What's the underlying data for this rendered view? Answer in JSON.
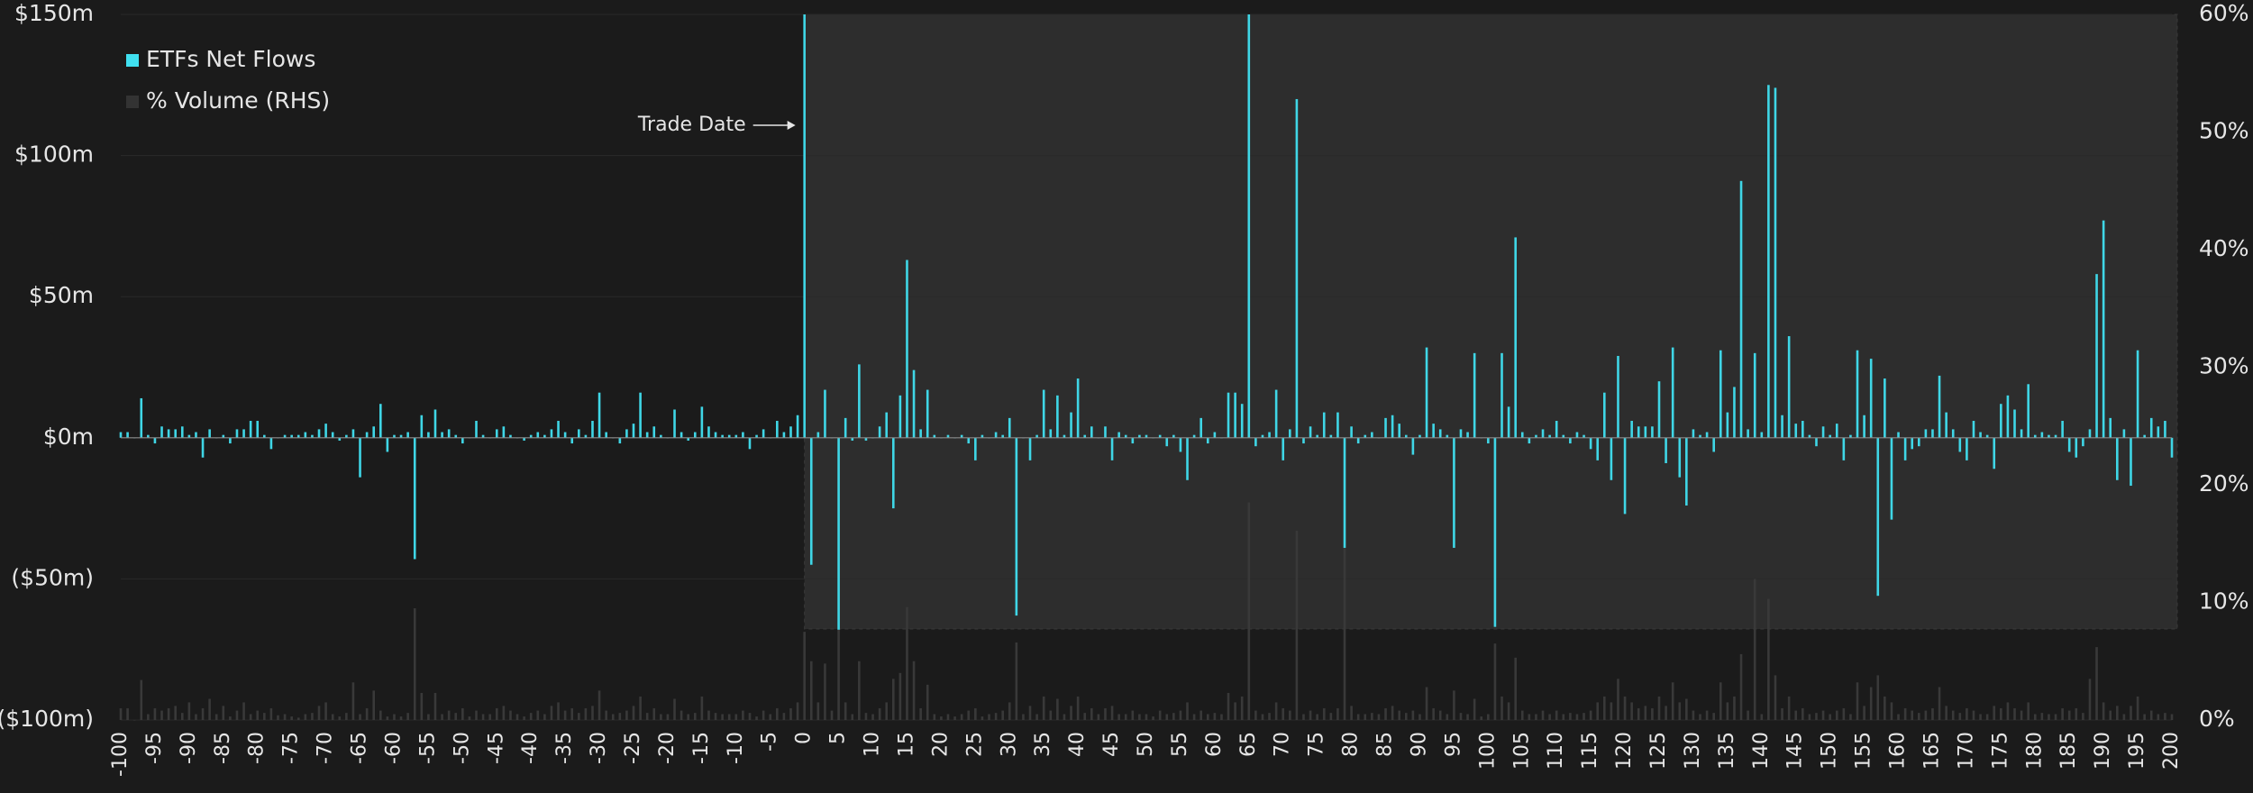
{
  "chart_data": {
    "type": "bar",
    "annotation": {
      "text": "Trade Date",
      "x": 0
    },
    "x": [
      -100,
      -99,
      -98,
      -97,
      -96,
      -95,
      -94,
      -93,
      -92,
      -91,
      -90,
      -89,
      -88,
      -87,
      -86,
      -85,
      -84,
      -83,
      -82,
      -81,
      -80,
      -79,
      -78,
      -77,
      -76,
      -75,
      -74,
      -73,
      -72,
      -71,
      -70,
      -69,
      -68,
      -67,
      -66,
      -65,
      -64,
      -63,
      -62,
      -61,
      -60,
      -59,
      -58,
      -57,
      -56,
      -55,
      -54,
      -53,
      -52,
      -51,
      -50,
      -49,
      -48,
      -47,
      -46,
      -45,
      -44,
      -43,
      -42,
      -41,
      -40,
      -39,
      -38,
      -37,
      -36,
      -35,
      -34,
      -33,
      -32,
      -31,
      -30,
      -29,
      -28,
      -27,
      -26,
      -25,
      -24,
      -23,
      -22,
      -21,
      -20,
      -19,
      -18,
      -17,
      -16,
      -15,
      -14,
      -13,
      -12,
      -11,
      -10,
      -9,
      -8,
      -7,
      -6,
      -5,
      -4,
      -3,
      -2,
      -1,
      0,
      1,
      2,
      3,
      4,
      5,
      6,
      7,
      8,
      9,
      10,
      11,
      12,
      13,
      14,
      15,
      16,
      17,
      18,
      19,
      20,
      21,
      22,
      23,
      24,
      25,
      26,
      27,
      28,
      29,
      30,
      31,
      32,
      33,
      34,
      35,
      36,
      37,
      38,
      39,
      40,
      41,
      42,
      43,
      44,
      45,
      46,
      47,
      48,
      49,
      50,
      51,
      52,
      53,
      54,
      55,
      56,
      57,
      58,
      59,
      60,
      61,
      62,
      63,
      64,
      65,
      66,
      67,
      68,
      69,
      70,
      71,
      72,
      73,
      74,
      75,
      76,
      77,
      78,
      79,
      80,
      81,
      82,
      83,
      84,
      85,
      86,
      87,
      88,
      89,
      90,
      91,
      92,
      93,
      94,
      95,
      96,
      97,
      98,
      99,
      100,
      101,
      102,
      103,
      104,
      105,
      106,
      107,
      108,
      109,
      110,
      111,
      112,
      113,
      114,
      115,
      116,
      117,
      118,
      119,
      120,
      121,
      122,
      123,
      124,
      125,
      126,
      127,
      128,
      129,
      130,
      131,
      132,
      133,
      134,
      135,
      136,
      137,
      138,
      139,
      140,
      141,
      142,
      143,
      144,
      145,
      146,
      147,
      148,
      149,
      150,
      151,
      152,
      153,
      154,
      155,
      156,
      157,
      158,
      159,
      160,
      161,
      162,
      163,
      164,
      165,
      166,
      167,
      168,
      169,
      170,
      171,
      172,
      173,
      174,
      175,
      176,
      177,
      178,
      179,
      180,
      181,
      182,
      183,
      184,
      185,
      186,
      187,
      188,
      189,
      190,
      191,
      192,
      193,
      194,
      195,
      196,
      197,
      198,
      199,
      200
    ],
    "series": [
      {
        "name": "ETFs Net Flows",
        "color": "#3fd6e6",
        "values": [
          2,
          2,
          0,
          14,
          1,
          -2,
          4,
          3,
          3,
          4,
          1,
          2,
          -7,
          3,
          0,
          1,
          -2,
          3,
          3,
          6,
          6,
          1,
          -4,
          0,
          1,
          1,
          1,
          2,
          1,
          3,
          5,
          2,
          -1,
          1,
          3,
          -14,
          2,
          4,
          12,
          -5,
          1,
          1,
          2,
          -43,
          8,
          2,
          10,
          2,
          3,
          1,
          -2,
          0,
          6,
          1,
          0,
          3,
          4,
          1,
          0,
          -1,
          1,
          2,
          1,
          3,
          6,
          2,
          -2,
          3,
          1,
          6,
          16,
          2,
          0,
          -2,
          3,
          5,
          16,
          2,
          4,
          1,
          0,
          10,
          2,
          -1,
          2,
          11,
          4,
          2,
          1,
          1,
          1,
          2,
          -4,
          1,
          3,
          0,
          6,
          2,
          4,
          8,
          150,
          -45,
          2,
          17,
          0,
          -68,
          7,
          -1,
          26,
          -1,
          0,
          4,
          9,
          -25,
          15,
          63,
          24,
          3,
          17,
          1,
          0,
          1,
          0,
          1,
          -2,
          -8,
          1,
          0,
          2,
          1,
          7,
          -63,
          0,
          -8,
          1,
          17,
          3,
          15,
          1,
          9,
          21,
          1,
          4,
          0,
          4,
          -8,
          2,
          1,
          -2,
          1,
          1,
          0,
          1,
          -3,
          1,
          -5,
          -15,
          1,
          7,
          -2,
          2,
          0,
          16,
          16,
          12,
          150,
          -3,
          1,
          2,
          17,
          -8,
          3,
          120,
          -2,
          4,
          1,
          9,
          1,
          9,
          -39,
          4,
          -2,
          1,
          2,
          0,
          7,
          8,
          5,
          1,
          -6,
          1,
          32,
          5,
          3,
          1,
          -39,
          3,
          2,
          30,
          0,
          -2,
          -67,
          30,
          11,
          71,
          2,
          -2,
          1,
          3,
          1,
          6,
          1,
          -2,
          2,
          1,
          -4,
          -8,
          16,
          -15,
          29,
          -27,
          6,
          4,
          4,
          4,
          20,
          -9,
          32,
          -14,
          -24,
          3,
          1,
          2,
          -5,
          31,
          9,
          18,
          91,
          3,
          30,
          2,
          125,
          124,
          8,
          36,
          5,
          6,
          1,
          -3,
          4,
          1,
          5,
          -8,
          1,
          31,
          8,
          28,
          -56,
          21,
          -29,
          2,
          -8,
          -4,
          -3,
          3,
          3,
          22,
          9,
          3,
          -5,
          -8,
          6,
          2,
          1,
          -11,
          12,
          15,
          10,
          3,
          19,
          1,
          2,
          1,
          1,
          6,
          -5,
          -7,
          -3,
          3,
          58,
          77,
          7,
          -15,
          3,
          -17,
          31,
          1,
          7,
          4,
          6,
          -7
        ]
      },
      {
        "name": "% Volume (RHS)",
        "color": "#393939",
        "axis": "y2",
        "values": [
          1,
          1,
          0,
          3.4,
          0.5,
          1,
          0.8,
          1,
          1.2,
          0.6,
          1.5,
          0.5,
          1,
          1.8,
          0.5,
          1.2,
          0.3,
          0.8,
          1.5,
          0.5,
          0.8,
          0.6,
          1,
          0.4,
          0.5,
          0.3,
          0.2,
          0.5,
          0.6,
          1.2,
          1.5,
          0.5,
          0.3,
          0.6,
          3.2,
          0.5,
          1,
          2.5,
          0.8,
          0.3,
          0.5,
          0.3,
          0.6,
          9.5,
          2.3,
          0.5,
          2.3,
          0.5,
          0.8,
          0.6,
          1,
          0.3,
          0.8,
          0.5,
          0.5,
          1,
          1.2,
          0.8,
          0.5,
          0.3,
          0.6,
          0.8,
          0.5,
          1.2,
          1.5,
          0.8,
          1,
          0.6,
          1,
          1.2,
          2.5,
          0.8,
          0.5,
          0.6,
          0.8,
          1.2,
          2,
          0.6,
          1,
          0.5,
          0.5,
          1.8,
          0.8,
          0.5,
          0.6,
          2,
          0.8,
          0.6,
          0.5,
          0.5,
          0.5,
          0.8,
          0.6,
          0.3,
          0.8,
          0.5,
          1,
          0.6,
          1,
          1.5,
          7.5,
          5,
          1.5,
          4.8,
          0.8,
          8.5,
          1.5,
          0.5,
          5,
          0.6,
          0.5,
          1,
          1.5,
          3.5,
          4,
          9.6,
          5,
          1,
          3,
          0.5,
          0.3,
          0.5,
          0.3,
          0.5,
          0.8,
          1,
          0.3,
          0.5,
          0.6,
          0.8,
          1.5,
          6.6,
          0.5,
          1.2,
          0.5,
          2,
          0.8,
          1.8,
          0.5,
          1.2,
          2,
          0.6,
          1,
          0.5,
          1,
          1.2,
          0.5,
          0.5,
          0.8,
          0.5,
          0.5,
          0.3,
          0.8,
          0.5,
          0.6,
          0.8,
          1.5,
          0.5,
          0.8,
          0.5,
          0.6,
          0.5,
          2.3,
          1.5,
          2,
          18.5,
          0.8,
          0.5,
          0.6,
          1.5,
          1,
          0.8,
          16.1,
          0.5,
          0.8,
          0.5,
          1,
          0.6,
          1,
          18.2,
          1.2,
          0.5,
          0.5,
          0.6,
          0.5,
          1,
          1.2,
          0.8,
          0.6,
          0.8,
          0.5,
          2.8,
          1,
          0.8,
          0.5,
          2.5,
          0.6,
          0.5,
          1.8,
          0.3,
          0.5,
          6.5,
          2,
          1.5,
          5.3,
          0.8,
          0.5,
          0.5,
          0.8,
          0.5,
          0.8,
          0.5,
          0.6,
          0.5,
          0.6,
          0.8,
          1.5,
          2,
          1.5,
          3.5,
          2,
          1.5,
          1,
          1.2,
          1,
          2,
          1.2,
          3.2,
          1.5,
          1.8,
          0.8,
          0.5,
          0.8,
          0.6,
          3.2,
          1.5,
          2,
          5.6,
          0.8,
          12,
          0.5,
          10.3,
          3.8,
          1,
          2,
          0.8,
          1,
          0.5,
          0.6,
          0.8,
          0.5,
          0.8,
          1,
          0.5,
          3.2,
          1.2,
          2.8,
          3.8,
          2,
          1.5,
          0.5,
          1,
          0.8,
          0.6,
          0.8,
          1,
          2.8,
          1.2,
          0.8,
          0.6,
          1,
          0.8,
          0.5,
          0.5,
          1.2,
          1,
          1.5,
          1,
          0.8,
          1.5,
          0.5,
          0.6,
          0.5,
          0.5,
          1,
          0.8,
          1,
          0.6,
          3.5,
          6.2,
          1.5,
          0.8,
          1.2,
          0.5,
          1.2,
          2,
          0.5,
          0.8,
          0.5,
          0.6,
          0.5
        ]
      }
    ],
    "xlim": [
      -100,
      200
    ],
    "xticks": [
      -100,
      -95,
      -90,
      -85,
      -80,
      -75,
      -70,
      -65,
      -60,
      -55,
      -50,
      -45,
      -40,
      -35,
      -30,
      -25,
      -20,
      -15,
      -10,
      -5,
      0,
      5,
      10,
      15,
      20,
      25,
      30,
      35,
      40,
      45,
      50,
      55,
      60,
      65,
      70,
      75,
      80,
      85,
      90,
      95,
      100,
      105,
      110,
      115,
      120,
      125,
      130,
      135,
      140,
      145,
      150,
      155,
      160,
      165,
      170,
      175,
      180,
      185,
      190,
      195,
      200
    ],
    "ylim": [
      -100,
      150
    ],
    "yticks": [
      {
        "value": -100,
        "label": "($100m)"
      },
      {
        "value": -50,
        "label": "($50m)"
      },
      {
        "value": 0,
        "label": "$0m"
      },
      {
        "value": 50,
        "label": "$50m"
      },
      {
        "value": 100,
        "label": "$100m"
      },
      {
        "value": 150,
        "label": "$150m"
      }
    ],
    "y2lim": [
      0,
      60
    ],
    "y2ticks": [
      {
        "value": 0,
        "label": "0%"
      },
      {
        "value": 10,
        "label": "10%"
      },
      {
        "value": 20,
        "label": "20%"
      },
      {
        "value": 30,
        "label": "30%"
      },
      {
        "value": 40,
        "label": "40%"
      },
      {
        "value": 50,
        "label": "50%"
      },
      {
        "value": 60,
        "label": "60%"
      }
    ],
    "grid": true,
    "legend": "top-left"
  }
}
